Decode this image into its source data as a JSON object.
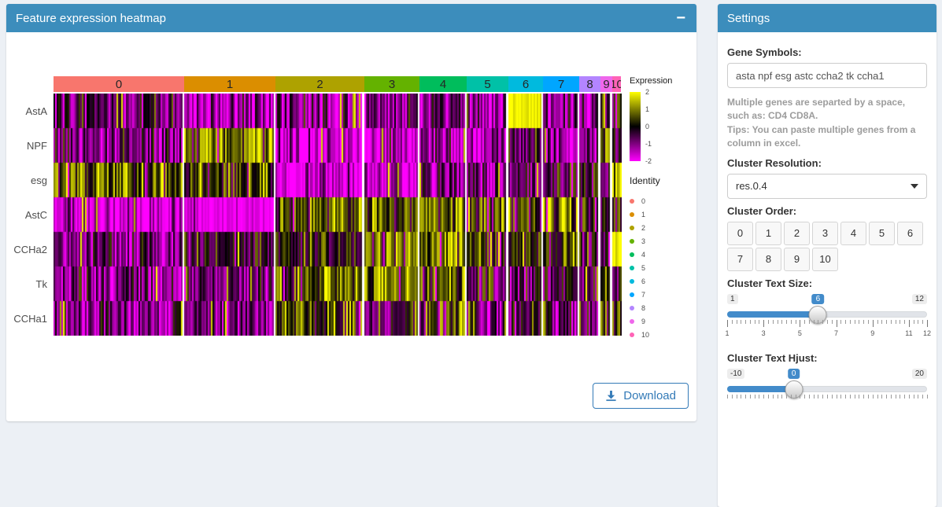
{
  "heatmap_panel": {
    "title": "Feature expression heatmap",
    "collapse_label": "−",
    "download_label": "Download"
  },
  "settings_panel": {
    "title": "Settings",
    "gene_symbols_label": "Gene Symbols:",
    "gene_symbols_value": "asta npf esg astc ccha2 tk ccha1",
    "help_line1": "Multiple genes are separted by a space, such as: CD4 CD8A.",
    "help_line2": "Tips: You can paste multiple genes from a column in excel.",
    "cluster_resolution_label": "Cluster Resolution:",
    "cluster_resolution_value": "res.0.4",
    "cluster_order_label": "Cluster Order:",
    "cluster_order_items": [
      "0",
      "1",
      "2",
      "3",
      "4",
      "5",
      "6",
      "7",
      "8",
      "9",
      "10"
    ],
    "text_size_label": "Cluster Text Size:",
    "text_size_slider": {
      "min": "1",
      "max": "12",
      "value": "6",
      "tick_labels": [
        "1",
        "3",
        "5",
        "7",
        "9",
        "11",
        "12"
      ]
    },
    "hjust_label": "Cluster Text Hjust:",
    "hjust_slider": {
      "min": "-10",
      "max": "20",
      "value": "0",
      "tick_labels": []
    }
  },
  "chart_data": {
    "type": "heatmap",
    "title": "Feature expression heatmap",
    "genes": [
      "AstA",
      "NPF",
      "esg",
      "AstC",
      "CCHa2",
      "Tk",
      "CCHa1"
    ],
    "clusters": [
      "0",
      "1",
      "2",
      "3",
      "4",
      "5",
      "6",
      "7",
      "8",
      "9",
      "10"
    ],
    "cluster_colors": [
      "#F8766D",
      "#DB8E00",
      "#AEA200",
      "#64B200",
      "#00BD5C",
      "#00C1A7",
      "#00BADE",
      "#00A6FF",
      "#B385FF",
      "#EF67EB",
      "#FF63B6"
    ],
    "cluster_size_weights": [
      170,
      118,
      115,
      70,
      60,
      52,
      43,
      45,
      25,
      13,
      12
    ],
    "expression_range": [
      -2,
      2
    ],
    "colormap": [
      "#FF00FF",
      "#000000",
      "#FFFF00"
    ],
    "mean_expression_by_cluster": {
      "AstA": [
        -0.6,
        -1.3,
        -1.1,
        -1.2,
        -1.0,
        -1.3,
        2.0,
        -1.1,
        -0.9,
        -0.6,
        -0.6
      ],
      "NPF": [
        -0.9,
        0.9,
        -1.6,
        -1.5,
        -1.2,
        -1.4,
        -0.6,
        -1.4,
        -0.9,
        0.2,
        -0.4
      ],
      "esg": [
        0.7,
        0.4,
        -1.6,
        -1.4,
        -1.0,
        -0.9,
        -0.7,
        -0.4,
        0.1,
        -0.3,
        1.6
      ],
      "AstC": [
        -1.6,
        -1.8,
        0.7,
        0.4,
        0.7,
        0.4,
        0.2,
        0.4,
        0.0,
        -0.4,
        0.1
      ],
      "CCHa2": [
        -0.8,
        -0.5,
        0.1,
        1.1,
        0.9,
        0.4,
        0.2,
        0.4,
        -0.4,
        -0.4,
        2.0
      ],
      "Tk": [
        -1.1,
        -0.7,
        0.7,
        0.9,
        0.7,
        -0.4,
        -0.7,
        -0.4,
        -0.4,
        0.1,
        -0.4
      ],
      "CCHa1": [
        -1.1,
        -0.9,
        0.4,
        -0.4,
        0.7,
        -0.7,
        -0.4,
        -0.7,
        -0.4,
        0.2,
        0.4
      ]
    },
    "expression_legend": {
      "title": "Expression",
      "ticks": [
        "2",
        "1",
        "0",
        "-1",
        "-2"
      ]
    },
    "identity_legend": {
      "title": "Identity",
      "labels": [
        "0",
        "1",
        "2",
        "3",
        "4",
        "5",
        "6",
        "7",
        "8",
        "9",
        "10"
      ]
    }
  }
}
